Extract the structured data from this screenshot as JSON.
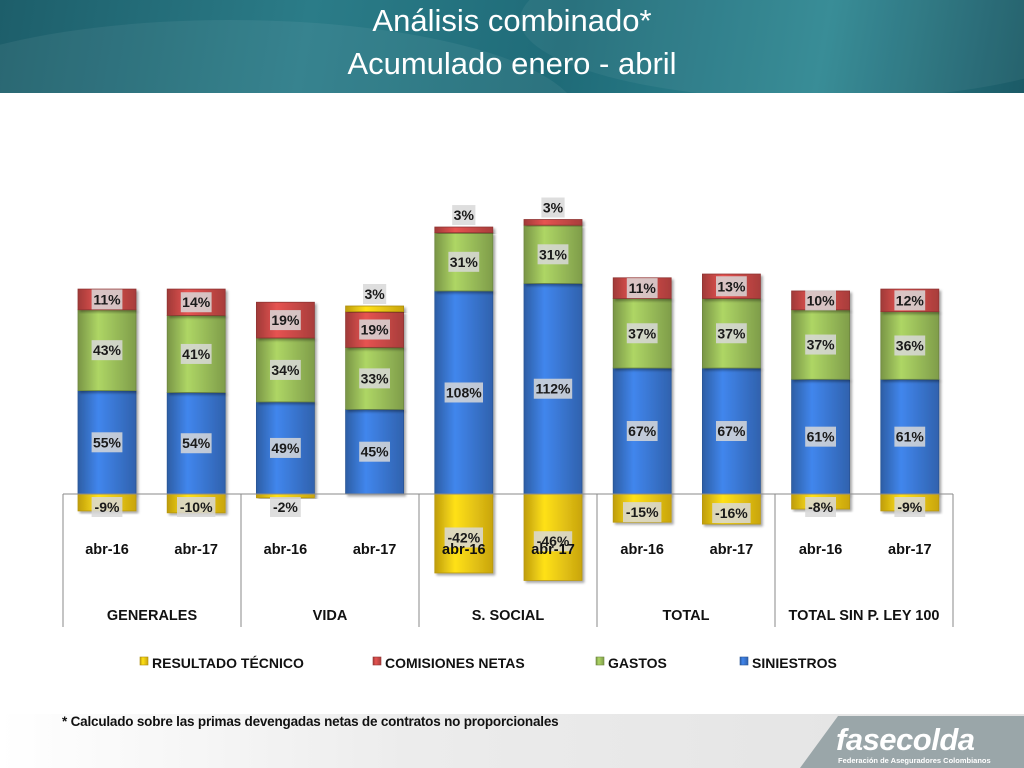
{
  "header": {
    "title_line1": "Análisis combinado*",
    "title_line2": "Acumulado  enero - abril"
  },
  "colors": {
    "siniestros": "#3a78d4",
    "gastos": "#9bbf5a",
    "comisiones": "#cd4a48",
    "resultado": "#f5c913",
    "header_bg": "#236e7a"
  },
  "chart_data": {
    "type": "bar",
    "stacked": true,
    "groups": [
      "GENERALES",
      "VIDA",
      "S. SOCIAL",
      "TOTAL",
      "TOTAL SIN P. LEY 100"
    ],
    "categories": [
      "abr-16",
      "abr-17",
      "abr-16",
      "abr-17",
      "abr-16",
      "abr-17",
      "abr-16",
      "abr-17",
      "abr-16",
      "abr-17"
    ],
    "series": [
      {
        "name": "SINIESTROS",
        "values": [
          55,
          54,
          49,
          45,
          108,
          112,
          67,
          67,
          61,
          61
        ]
      },
      {
        "name": "GASTOS",
        "values": [
          43,
          41,
          34,
          33,
          31,
          31,
          37,
          37,
          37,
          36
        ]
      },
      {
        "name": "COMISIONES NETAS",
        "values": [
          11,
          14,
          19,
          19,
          3,
          3,
          11,
          13,
          10,
          12
        ]
      },
      {
        "name": "RESULTADO TÉCNICO",
        "values": [
          -9,
          -10,
          -2,
          3,
          -42,
          -46,
          -15,
          -16,
          -8,
          -9
        ]
      }
    ],
    "legend": [
      "RESULTADO TÉCNICO",
      "COMISIONES NETAS",
      "GASTOS",
      "SINIESTROS"
    ],
    "legend_position": "bottom",
    "unit": "%",
    "grid": false
  },
  "footer": {
    "note": "* Calculado sobre las primas devengadas netas de contratos no proporcionales",
    "logo_text": "fasecolda",
    "logo_subtitle": "Federación de Aseguradores Colombianos"
  }
}
